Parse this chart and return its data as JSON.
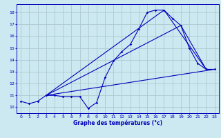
{
  "xlabel": "Graphe des températures (°c)",
  "bg_color": "#cce8f0",
  "grid_color": "#b0c8d0",
  "line_color": "#0000bb",
  "xlim": [
    -0.5,
    23.5
  ],
  "ylim": [
    9.5,
    18.7
  ],
  "yticks": [
    10,
    11,
    12,
    13,
    14,
    15,
    16,
    17,
    18
  ],
  "xticks": [
    0,
    1,
    2,
    3,
    4,
    5,
    6,
    7,
    8,
    9,
    10,
    11,
    12,
    13,
    14,
    15,
    16,
    17,
    18,
    19,
    20,
    21,
    22,
    23
  ],
  "series1_x": [
    0,
    1,
    2,
    3,
    4,
    5,
    6,
    7,
    8,
    9,
    10,
    11,
    12,
    13,
    14,
    15,
    16,
    17,
    18,
    19,
    20,
    21,
    22,
    23
  ],
  "series1_y": [
    10.5,
    10.3,
    10.5,
    11.0,
    11.0,
    10.9,
    10.9,
    10.9,
    9.9,
    10.4,
    12.5,
    13.9,
    14.7,
    15.3,
    16.6,
    18.0,
    18.2,
    18.2,
    17.5,
    16.9,
    15.0,
    13.7,
    13.2,
    13.2
  ],
  "series2_x": [
    3,
    17,
    22
  ],
  "series2_y": [
    11.0,
    18.2,
    13.2
  ],
  "series3_x": [
    3,
    19,
    22
  ],
  "series3_y": [
    11.0,
    16.9,
    13.2
  ],
  "series4_x": [
    3,
    23
  ],
  "series4_y": [
    11.0,
    13.2
  ],
  "xlabel_fontsize": 5.5,
  "tick_fontsize": 4.5
}
